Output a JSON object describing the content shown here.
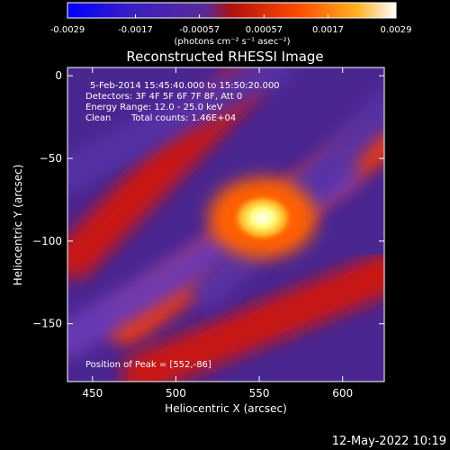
{
  "chart_data": {
    "type": "heatmap",
    "title": "Reconstructed RHESSI Image",
    "xlabel": "Heliocentric X (arcsec)",
    "ylabel": "Heliocentric Y (arcsec)",
    "xlim": [
      435,
      625
    ],
    "ylim": [
      -185,
      5
    ],
    "xticks": [
      450,
      500,
      550,
      600
    ],
    "yticks": [
      0,
      -50,
      -100,
      -150
    ],
    "colorbar": {
      "min": -0.0029,
      "max": 0.0029,
      "tick_labels": [
        "-0.0029",
        "-0.0017",
        "-0.00057",
        "0.00057",
        "0.0017",
        "0.0029"
      ],
      "tick_values": [
        -0.0029,
        -0.0017,
        -0.00057,
        0.00057,
        0.0017,
        0.0029
      ],
      "unit_label": "(photons cm⁻² s⁻¹ asec⁻²)",
      "colormap": [
        "#0000ff",
        "#3a1fc0",
        "#5a2a9a",
        "#c01010",
        "#ff4a00",
        "#ffb020",
        "#ffffff"
      ]
    },
    "annotations": [
      "5-Feb-2014 15:45:40.000 to 15:50:20.000",
      "Detectors: 3F 4F 5F 6F 7F 8F, Att 0",
      "Energy Range: 12.0 - 25.0 keV",
      "Clean",
      "Total counts: 1.46E+04"
    ],
    "peak_label": "Position of Peak = [552,-86]",
    "peak": {
      "x": 552,
      "y": -86
    },
    "structures": [
      {
        "kind": "positive-band",
        "from": [
          440,
          -110
        ],
        "to": [
          540,
          -5
        ],
        "level": 0.0013
      },
      {
        "kind": "positive-band",
        "from": [
          470,
          -150
        ],
        "to": [
          620,
          -40
        ],
        "level": 0.0015
      },
      {
        "kind": "positive-band",
        "from": [
          480,
          -180
        ],
        "to": [
          625,
          -120
        ],
        "level": 0.0012
      },
      {
        "kind": "negative-band",
        "from": [
          435,
          -60
        ],
        "to": [
          560,
          5
        ],
        "level": -0.0008
      },
      {
        "kind": "negative-band",
        "from": [
          435,
          -160
        ],
        "to": [
          600,
          -60
        ],
        "level": -0.0009
      },
      {
        "kind": "negative-band",
        "from": [
          520,
          -130
        ],
        "to": [
          625,
          -20
        ],
        "level": -0.0007
      },
      {
        "kind": "peak",
        "at": [
          552,
          -86
        ],
        "level": 0.0029
      }
    ]
  },
  "footer_timestamp": "12-May-2022 10:19"
}
